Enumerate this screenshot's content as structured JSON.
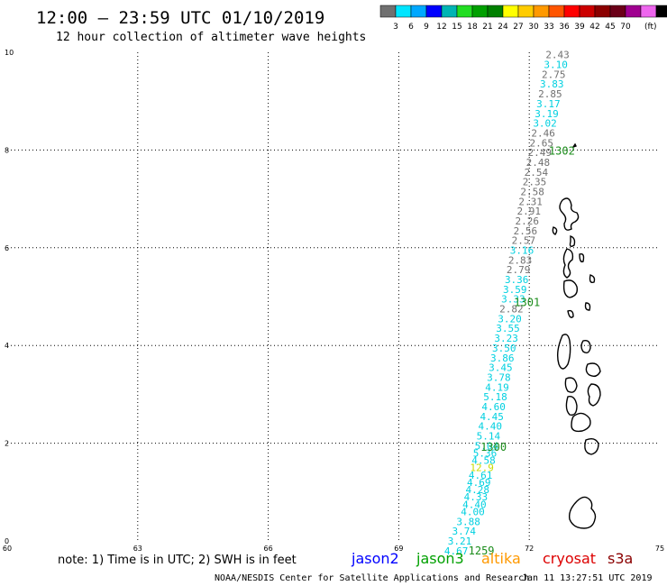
{
  "header": {
    "title": "12:00 – 23:59 UTC 01/10/2019",
    "subtitle": "12 hour collection of altimeter wave heights"
  },
  "color_scale": {
    "unit": "(ft)",
    "colors": [
      "#707070",
      "#00e5ff",
      "#00a8ff",
      "#0000ff",
      "#00b4b4",
      "#22dd22",
      "#00a000",
      "#008000",
      "#ffff00",
      "#ffcc00",
      "#ff9900",
      "#ff5500",
      "#ff0000",
      "#cc0000",
      "#8b0000",
      "#6b0018",
      "#a00090",
      "#ee66ee",
      "#000000"
    ],
    "labels": [
      "3",
      "6",
      "9",
      "12",
      "15",
      "18",
      "21",
      "24",
      "27",
      "30",
      "33",
      "36",
      "39",
      "42",
      "45",
      "70"
    ]
  },
  "map": {
    "x_axis": {
      "min": 60,
      "max": 75,
      "labels": [
        "60",
        "63",
        "66",
        "69",
        "72",
        "75"
      ],
      "values": [
        60,
        63,
        66,
        69,
        72,
        75
      ]
    },
    "y_axis": {
      "min": 0,
      "max": 10,
      "labels": [
        "0",
        "2",
        "4",
        "6",
        "8",
        "10"
      ],
      "values": [
        0,
        2,
        4,
        6,
        8,
        10
      ]
    },
    "observations": [
      {
        "lon": 72.65,
        "lat": 9.95,
        "text": "2.43",
        "color": "#707070"
      },
      {
        "lon": 72.61,
        "lat": 9.75,
        "text": "3.10",
        "color": "#00d0e0"
      },
      {
        "lon": 72.56,
        "lat": 9.55,
        "text": "2.75",
        "color": "#707070"
      },
      {
        "lon": 72.52,
        "lat": 9.35,
        "text": "3.83",
        "color": "#00d0e0"
      },
      {
        "lon": 72.48,
        "lat": 9.15,
        "text": "2.85",
        "color": "#707070"
      },
      {
        "lon": 72.44,
        "lat": 8.95,
        "text": "3.17",
        "color": "#00d0e0"
      },
      {
        "lon": 72.4,
        "lat": 8.75,
        "text": "3.19",
        "color": "#00d0e0"
      },
      {
        "lon": 72.36,
        "lat": 8.55,
        "text": "3.02",
        "color": "#00d0e0"
      },
      {
        "lon": 72.32,
        "lat": 8.35,
        "text": "2.46",
        "color": "#707070"
      },
      {
        "lon": 72.28,
        "lat": 8.15,
        "text": "2.65",
        "color": "#707070"
      },
      {
        "lon": 72.24,
        "lat": 7.95,
        "text": "2.49",
        "color": "#707070"
      },
      {
        "lon": 72.2,
        "lat": 7.75,
        "text": "2.48",
        "color": "#707070"
      },
      {
        "lon": 72.16,
        "lat": 7.55,
        "text": "2.54",
        "color": "#707070"
      },
      {
        "lon": 72.12,
        "lat": 7.35,
        "text": "2.35",
        "color": "#707070"
      },
      {
        "lon": 72.07,
        "lat": 7.15,
        "text": "2.58",
        "color": "#707070"
      },
      {
        "lon": 72.03,
        "lat": 6.95,
        "text": "2.31",
        "color": "#707070"
      },
      {
        "lon": 71.99,
        "lat": 6.75,
        "text": "2.91",
        "color": "#707070"
      },
      {
        "lon": 71.95,
        "lat": 6.55,
        "text": "2.26",
        "color": "#707070"
      },
      {
        "lon": 71.91,
        "lat": 6.35,
        "text": "2.56",
        "color": "#707070"
      },
      {
        "lon": 71.87,
        "lat": 6.15,
        "text": "2.57",
        "color": "#707070"
      },
      {
        "lon": 71.83,
        "lat": 5.95,
        "text": "3.16",
        "color": "#00d0e0"
      },
      {
        "lon": 71.79,
        "lat": 5.75,
        "text": "2.83",
        "color": "#707070"
      },
      {
        "lon": 71.75,
        "lat": 5.55,
        "text": "2.79",
        "color": "#707070"
      },
      {
        "lon": 71.71,
        "lat": 5.35,
        "text": "3.36",
        "color": "#00d0e0"
      },
      {
        "lon": 71.67,
        "lat": 5.15,
        "text": "3.59",
        "color": "#00d0e0"
      },
      {
        "lon": 71.63,
        "lat": 4.95,
        "text": "3.33",
        "color": "#00d0e0"
      },
      {
        "lon": 71.59,
        "lat": 4.75,
        "text": "2.82",
        "color": "#707070"
      },
      {
        "lon": 71.55,
        "lat": 4.55,
        "text": "3.20",
        "color": "#00d0e0"
      },
      {
        "lon": 71.51,
        "lat": 4.35,
        "text": "3.55",
        "color": "#00d0e0"
      },
      {
        "lon": 71.47,
        "lat": 4.15,
        "text": "3.23",
        "color": "#00d0e0"
      },
      {
        "lon": 71.42,
        "lat": 3.95,
        "text": "3.50",
        "color": "#00d0e0"
      },
      {
        "lon": 71.38,
        "lat": 3.75,
        "text": "3.86",
        "color": "#00d0e0"
      },
      {
        "lon": 71.34,
        "lat": 3.55,
        "text": "3.45",
        "color": "#00d0e0"
      },
      {
        "lon": 71.3,
        "lat": 3.35,
        "text": "3.78",
        "color": "#00d0e0"
      },
      {
        "lon": 71.26,
        "lat": 3.15,
        "text": "4.19",
        "color": "#00d0e0"
      },
      {
        "lon": 71.22,
        "lat": 2.95,
        "text": "5.18",
        "color": "#00d0e0"
      },
      {
        "lon": 71.18,
        "lat": 2.75,
        "text": "4.60",
        "color": "#00d0e0"
      },
      {
        "lon": 71.14,
        "lat": 2.55,
        "text": "4.45",
        "color": "#00d0e0"
      },
      {
        "lon": 71.1,
        "lat": 2.35,
        "text": "4.40",
        "color": "#00d0e0"
      },
      {
        "lon": 71.06,
        "lat": 2.15,
        "text": "5.14",
        "color": "#00d0e0"
      },
      {
        "lon": 71.02,
        "lat": 1.95,
        "text": "5.04",
        "color": "#00d0e0"
      },
      {
        "lon": 70.98,
        "lat": 1.8,
        "text": "5.36",
        "color": "#00d0e0"
      },
      {
        "lon": 70.95,
        "lat": 1.65,
        "text": "4.58",
        "color": "#00d0e0"
      },
      {
        "lon": 70.91,
        "lat": 1.5,
        "text": "12.9",
        "color": "#c8dc00"
      },
      {
        "lon": 70.88,
        "lat": 1.35,
        "text": "4.61",
        "color": "#00d0e0"
      },
      {
        "lon": 70.84,
        "lat": 1.2,
        "text": "4.69",
        "color": "#00d0e0"
      },
      {
        "lon": 70.81,
        "lat": 1.05,
        "text": "4.28",
        "color": "#00d0e0"
      },
      {
        "lon": 70.77,
        "lat": 0.9,
        "text": "4.33",
        "color": "#00d0e0"
      },
      {
        "lon": 70.74,
        "lat": 0.75,
        "text": "4.40",
        "color": "#00d0e0"
      },
      {
        "lon": 70.7,
        "lat": 0.6,
        "text": "4.00",
        "color": "#00d0e0"
      },
      {
        "lon": 70.6,
        "lat": 0.4,
        "text": "3.88",
        "color": "#00d0e0"
      },
      {
        "lon": 70.5,
        "lat": 0.2,
        "text": "3.74",
        "color": "#00d0e0"
      },
      {
        "lon": 70.4,
        "lat": 0.0,
        "text": "3.21",
        "color": "#00d0e0"
      },
      {
        "lon": 70.32,
        "lat": -0.2,
        "text": "4.67",
        "color": "#00d0e0"
      }
    ],
    "time_labels": [
      {
        "lon": 72.45,
        "lat": 7.98,
        "text": "1302"
      },
      {
        "lon": 71.65,
        "lat": 4.88,
        "text": "1301"
      },
      {
        "lon": 70.88,
        "lat": 1.92,
        "text": "1300"
      },
      {
        "lon": 70.6,
        "lat": -0.2,
        "text": "1259"
      }
    ]
  },
  "note": "note: 1) Time is in UTC; 2) SWH is in feet",
  "satellites": [
    {
      "name": "jason2",
      "color": "#0000ff"
    },
    {
      "name": "jason3",
      "color": "#00a000"
    },
    {
      "name": "altika",
      "color": "#ff9900"
    },
    {
      "name": "cryosat",
      "color": "#dd0000"
    },
    {
      "name": "s3a",
      "color": "#8b0000"
    }
  ],
  "footer": {
    "source": "NOAA/NESDIS Center for Satellite Applications and Research",
    "timestamp": "Jan 11 13:27:51 UTC 2019"
  }
}
